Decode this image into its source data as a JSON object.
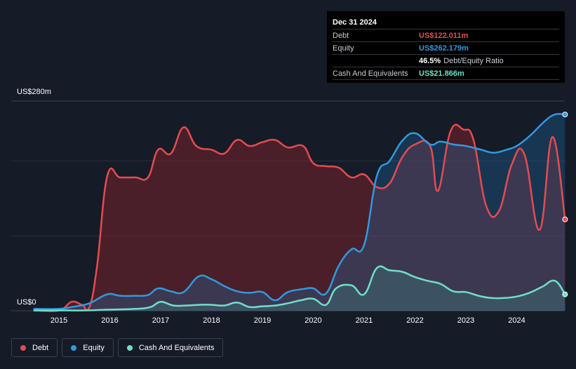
{
  "tooltip": {
    "date": "Dec 31 2024",
    "rows": [
      {
        "label": "Debt",
        "value": "US$122.011m",
        "color": "#e64b4f"
      },
      {
        "label": "Equity",
        "value": "US$262.179m",
        "color": "#2f9ae0"
      },
      {
        "label": "",
        "value": "46.5%",
        "suffix": "Debt/Equity Ratio",
        "color": "#ffffff"
      },
      {
        "label": "Cash And Equivalents",
        "value": "US$21.866m",
        "color": "#6fe0c8"
      }
    ]
  },
  "legend": [
    {
      "label": "Debt",
      "color": "#e64b4f"
    },
    {
      "label": "Equity",
      "color": "#2f9ae0"
    },
    {
      "label": "Cash And Equivalents",
      "color": "#6fe0c8"
    }
  ],
  "chart_data": {
    "type": "area",
    "y_top_label": "US$280m",
    "y_bottom_label": "US$0",
    "ylim": [
      0,
      280
    ],
    "xlim": [
      2014.5,
      2025.0
    ],
    "x_ticks": [
      "2015",
      "2016",
      "2017",
      "2018",
      "2019",
      "2020",
      "2021",
      "2022",
      "2023",
      "2024"
    ],
    "grid": true,
    "series": [
      {
        "name": "Debt",
        "color": "#e64b4f",
        "points": [
          [
            2014.5,
            0.5
          ],
          [
            2015.0,
            0.5
          ],
          [
            2015.25,
            12
          ],
          [
            2015.45,
            8
          ],
          [
            2015.6,
            5
          ],
          [
            2015.75,
            60
          ],
          [
            2015.95,
            180
          ],
          [
            2016.2,
            178
          ],
          [
            2016.5,
            178
          ],
          [
            2016.75,
            178
          ],
          [
            2016.95,
            215
          ],
          [
            2017.2,
            210
          ],
          [
            2017.45,
            245
          ],
          [
            2017.7,
            220
          ],
          [
            2018.0,
            215
          ],
          [
            2018.25,
            210
          ],
          [
            2018.5,
            228
          ],
          [
            2018.75,
            220
          ],
          [
            2019.0,
            225
          ],
          [
            2019.25,
            228
          ],
          [
            2019.5,
            218
          ],
          [
            2019.8,
            220
          ],
          [
            2020.0,
            197
          ],
          [
            2020.25,
            193
          ],
          [
            2020.5,
            191
          ],
          [
            2020.75,
            178
          ],
          [
            2021.0,
            182
          ],
          [
            2021.25,
            165
          ],
          [
            2021.5,
            170
          ],
          [
            2021.75,
            205
          ],
          [
            2022.0,
            222
          ],
          [
            2022.3,
            220
          ],
          [
            2022.45,
            160
          ],
          [
            2022.7,
            240
          ],
          [
            2022.95,
            242
          ],
          [
            2023.15,
            228
          ],
          [
            2023.4,
            140
          ],
          [
            2023.65,
            133
          ],
          [
            2023.9,
            195
          ],
          [
            2024.15,
            209
          ],
          [
            2024.45,
            108
          ],
          [
            2024.7,
            232
          ],
          [
            2024.95,
            122
          ]
        ]
      },
      {
        "name": "Equity",
        "color": "#2f9ae0",
        "points": [
          [
            2014.5,
            2.5
          ],
          [
            2015.0,
            2.5
          ],
          [
            2015.25,
            5
          ],
          [
            2015.6,
            10
          ],
          [
            2015.95,
            22
          ],
          [
            2016.2,
            20
          ],
          [
            2016.5,
            20
          ],
          [
            2016.75,
            21
          ],
          [
            2016.95,
            30
          ],
          [
            2017.2,
            26
          ],
          [
            2017.45,
            25
          ],
          [
            2017.75,
            46
          ],
          [
            2018.0,
            42
          ],
          [
            2018.25,
            33
          ],
          [
            2018.5,
            26
          ],
          [
            2018.75,
            24
          ],
          [
            2019.0,
            25
          ],
          [
            2019.25,
            14
          ],
          [
            2019.5,
            25
          ],
          [
            2019.8,
            29
          ],
          [
            2020.0,
            30
          ],
          [
            2020.25,
            23
          ],
          [
            2020.5,
            60
          ],
          [
            2020.75,
            82
          ],
          [
            2021.0,
            88
          ],
          [
            2021.25,
            180
          ],
          [
            2021.5,
            200
          ],
          [
            2021.75,
            227
          ],
          [
            2022.0,
            237
          ],
          [
            2022.3,
            222
          ],
          [
            2022.5,
            226
          ],
          [
            2022.75,
            222
          ],
          [
            2023.0,
            220
          ],
          [
            2023.3,
            215
          ],
          [
            2023.55,
            211
          ],
          [
            2023.8,
            215
          ],
          [
            2024.0,
            220
          ],
          [
            2024.25,
            233
          ],
          [
            2024.55,
            253
          ],
          [
            2024.75,
            262
          ],
          [
            2024.95,
            262
          ]
        ]
      },
      {
        "name": "Cash And Equivalents",
        "color": "#6fe0c8",
        "points": [
          [
            2014.5,
            0.5
          ],
          [
            2015.0,
            0.5
          ],
          [
            2015.5,
            0.5
          ],
          [
            2015.95,
            1.5
          ],
          [
            2016.5,
            2.5
          ],
          [
            2016.8,
            5
          ],
          [
            2017.0,
            12
          ],
          [
            2017.25,
            7
          ],
          [
            2017.5,
            7
          ],
          [
            2017.75,
            8
          ],
          [
            2018.0,
            8
          ],
          [
            2018.25,
            7
          ],
          [
            2018.5,
            11
          ],
          [
            2018.75,
            5
          ],
          [
            2019.0,
            6
          ],
          [
            2019.25,
            7
          ],
          [
            2019.5,
            10
          ],
          [
            2019.75,
            14
          ],
          [
            2020.0,
            16
          ],
          [
            2020.25,
            8
          ],
          [
            2020.45,
            30
          ],
          [
            2020.75,
            34
          ],
          [
            2021.0,
            22
          ],
          [
            2021.25,
            57
          ],
          [
            2021.5,
            54
          ],
          [
            2021.75,
            52
          ],
          [
            2022.0,
            45
          ],
          [
            2022.25,
            40
          ],
          [
            2022.5,
            36
          ],
          [
            2022.75,
            26
          ],
          [
            2023.0,
            25
          ],
          [
            2023.25,
            20
          ],
          [
            2023.5,
            17
          ],
          [
            2023.75,
            17
          ],
          [
            2024.0,
            19
          ],
          [
            2024.25,
            24
          ],
          [
            2024.5,
            32
          ],
          [
            2024.75,
            40
          ],
          [
            2024.95,
            21.9
          ]
        ]
      }
    ]
  }
}
